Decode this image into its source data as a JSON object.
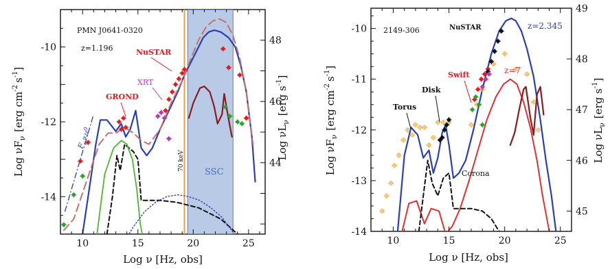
{
  "colors": {
    "model_blue": "#2a3fb0",
    "dashed_brown": "#c47070",
    "nustar_red": "#e41a1c",
    "xrt_magenta": "#b03cb0",
    "grond_red": "#e02020",
    "green_points": "#2ca02c",
    "corona_black": "#111111",
    "disk_green": "#4cb82e",
    "ssc_band": "#9bb4dc",
    "energy_line": "#f0a040",
    "dark_red": "#8b1a1a",
    "z7_red": "#e03030",
    "archival_orange": "#f0b050"
  },
  "chart_data": [
    {
      "type": "line",
      "title": "",
      "source_label": "PMN J0641-0320",
      "redshift_label": "z=1.196",
      "xlabel": "Log ν  [Hz, obs]",
      "ylabel": "Log νF",
      "ylabel_sub": "ν",
      "ylabel_units": "[erg cm",
      "ylabel_tail": "s",
      "ylabel2": "Log νL",
      "ylabel2_sub": "ν",
      "ylabel2_units": "[erg s",
      "xlim": [
        8,
        26.5
      ],
      "ylim": [
        -15,
        -9
      ],
      "y2lim": [
        41.67,
        49.0
      ],
      "xticks": [
        "10",
        "15",
        "20",
        "25"
      ],
      "xtick_values": [
        10,
        15,
        20,
        25
      ],
      "yticks": [
        "-14",
        "-12",
        "-10"
      ],
      "ytick_values": [
        -14,
        -12,
        -10
      ],
      "y2ticks": [
        "44",
        "46",
        "48"
      ],
      "y2tick_values": [
        44,
        46,
        48
      ],
      "annotations": {
        "nustar": "NuSTAR",
        "xrt": "XRT",
        "grond": "GROND",
        "energy_line": "70 keV",
        "ssc": "SSC",
        "slope_F": "F",
        "slope_sub": "ν",
        "slope_prop": "∝ν",
        "slope_exp": "0"
      },
      "ssc_band_x": [
        19.5,
        23.6
      ],
      "energy_line_x": 19.2,
      "series": [
        {
          "role": "total-model",
          "style": "solid-blue",
          "x": [
            10.0,
            11.2,
            11.6,
            12.2,
            13.0,
            13.5,
            13.9,
            14.3,
            14.8,
            15.3,
            15.8,
            16.3,
            17.0,
            17.8,
            18.6,
            19.2,
            19.8,
            20.4,
            20.9,
            21.4,
            21.9,
            22.5,
            23.2,
            23.8,
            24.3,
            24.8,
            25.3,
            25.6
          ],
          "y": [
            -15.0,
            -12.6,
            -11.95,
            -11.95,
            -12.25,
            -12.05,
            -12.4,
            -12.2,
            -11.7,
            -12.7,
            -12.9,
            -12.7,
            -12.2,
            -11.7,
            -11.2,
            -10.75,
            -10.4,
            -10.05,
            -9.75,
            -9.6,
            -9.55,
            -9.6,
            -9.75,
            -10.0,
            -10.5,
            -11.2,
            -12.4,
            -13.6
          ]
        },
        {
          "role": "dashed-model",
          "style": "long-dash-brown",
          "x": [
            8.3,
            9.2,
            10.0,
            10.8,
            11.5,
            12.3,
            13.0,
            13.8,
            14.6,
            15.3,
            16.0,
            17.0,
            18.0,
            19.0,
            19.8,
            20.5,
            21.2,
            21.8,
            22.4,
            23.0,
            23.6,
            24.2,
            24.8,
            25.4
          ],
          "y": [
            -14.9,
            -14.6,
            -13.9,
            -13.2,
            -12.6,
            -12.3,
            -12.3,
            -12.15,
            -12.3,
            -12.5,
            -12.6,
            -12.2,
            -11.5,
            -10.9,
            -10.3,
            -9.8,
            -9.45,
            -9.3,
            -9.25,
            -9.35,
            -9.7,
            -10.3,
            -11.2,
            -12.6
          ]
        },
        {
          "role": "black-dashed",
          "style": "short-dash-black",
          "x": [
            12.2,
            12.7,
            13.1,
            13.4,
            13.8,
            14.2,
            14.6,
            15.0,
            15.3,
            15.7,
            16.2,
            17.0,
            18.5,
            20.5,
            22.5,
            24.0,
            24.8
          ],
          "y": [
            -15.0,
            -14.0,
            -12.9,
            -13.3,
            -12.6,
            -12.7,
            -12.8,
            -13.0,
            -14.1,
            -14.1,
            -14.1,
            -14.1,
            -14.15,
            -14.3,
            -14.6,
            -15.0,
            -15.2
          ]
        },
        {
          "role": "green-disk",
          "style": "solid-green",
          "x": [
            11.3,
            12.0,
            12.8,
            13.5,
            14.0,
            14.5,
            14.9,
            15.2,
            15.5
          ],
          "y": [
            -15.0,
            -13.4,
            -12.7,
            -12.5,
            -12.6,
            -13.0,
            -13.8,
            -14.7,
            -15.2
          ]
        },
        {
          "role": "ssc-dotted",
          "style": "dotted-blue",
          "x": [
            13.8,
            14.6,
            15.6,
            16.6,
            17.6,
            18.6,
            19.6,
            20.6,
            21.6,
            22.6,
            23.6,
            24.2
          ],
          "y": [
            -15.2,
            -14.8,
            -14.4,
            -14.15,
            -14.0,
            -13.95,
            -14.0,
            -14.1,
            -14.3,
            -14.55,
            -14.95,
            -15.3
          ]
        },
        {
          "role": "dark-red-broken",
          "style": "solid-darkred",
          "x": [
            19.6,
            20.0,
            20.6,
            21.0,
            21.5,
            21.9,
            22.2,
            22.6,
            22.8,
            23.0,
            23.3,
            23.5
          ],
          "y": [
            -11.9,
            -11.5,
            -11.1,
            -11.05,
            -11.2,
            -11.6,
            -12.05,
            -11.8,
            -11.25,
            -11.6,
            -12.1,
            -12.4
          ]
        }
      ],
      "points": [
        {
          "set": "radio-green",
          "x": [
            8.3,
            9.2,
            10.0
          ],
          "y": [
            -14.75,
            -13.95,
            -13.45
          ]
        },
        {
          "set": "radio-red",
          "x": [
            9.8,
            10.5
          ],
          "y": [
            -13.05,
            -12.55
          ]
        },
        {
          "set": "grond",
          "x": [
            13.3,
            13.5,
            13.7,
            13.9
          ],
          "y": [
            -12.0,
            -12.2,
            -11.9,
            -12.15
          ]
        },
        {
          "set": "nustar",
          "x": [
            17.5,
            17.8,
            18.1,
            18.4,
            18.7,
            19.0,
            19.2
          ],
          "y": [
            -11.7,
            -11.4,
            -11.2,
            -11.0,
            -10.85,
            -10.7,
            -10.6
          ]
        },
        {
          "set": "xrt",
          "x": [
            16.8,
            17.1,
            17.4,
            17.8
          ],
          "y": [
            -11.85,
            -11.75,
            -11.9,
            -12.45
          ]
        },
        {
          "set": "high-energy-red",
          "x": [
            22.7,
            23.2,
            24.2,
            24.8
          ],
          "y": [
            -10.05,
            -10.55,
            -10.75,
            -11.9
          ]
        },
        {
          "set": "green-high",
          "x": [
            22.9,
            23.3,
            24.0,
            24.4
          ],
          "y": [
            -11.6,
            -11.85,
            -12.0,
            -12.05
          ]
        }
      ]
    },
    {
      "type": "line",
      "title": "",
      "source_label": "2149-306",
      "xlabel": "Log ν  [Hz, obs]",
      "ylabel": "Log νF",
      "ylabel_sub": "ν",
      "ylabel_units": "[erg cm",
      "ylabel_tail": "s",
      "ylabel2": "Log νL",
      "ylabel2_sub": "ν",
      "ylabel2_units": "[erg s",
      "xlim": [
        8,
        26
      ],
      "ylim": [
        -14,
        -9.6
      ],
      "y2lim": [
        44.6,
        49.0
      ],
      "xticks": [
        "10",
        "15",
        "20",
        "25"
      ],
      "xtick_values": [
        10,
        15,
        20,
        25
      ],
      "yticks": [
        "-14",
        "-13",
        "-12",
        "-11",
        "-10"
      ],
      "ytick_values": [
        -14,
        -13,
        -12,
        -11,
        -10
      ],
      "y2ticks": [
        "45",
        "46",
        "47",
        "48",
        "49"
      ],
      "y2tick_values": [
        45,
        46,
        47,
        48,
        49
      ],
      "annotations": {
        "nustar": "NuSTAR",
        "swift": "Swift",
        "disk": "Disk",
        "torus": "Torus",
        "corona": "Corona",
        "z_blue": "z=2.345",
        "z_red": "z=7"
      },
      "series": [
        {
          "role": "blue-model",
          "style": "solid-blue",
          "x": [
            10.4,
            11.0,
            11.6,
            12.2,
            12.7,
            13.2,
            13.6,
            14.0,
            14.4,
            14.7,
            15.0,
            15.4,
            15.9,
            16.5,
            17.2,
            18.0,
            18.8,
            19.5,
            20.1,
            20.6,
            21.0,
            21.5,
            22.0,
            22.6,
            23.2,
            23.7,
            24.2,
            24.6
          ],
          "y": [
            -14.0,
            -12.5,
            -11.95,
            -12.1,
            -12.55,
            -12.4,
            -12.85,
            -12.55,
            -12.05,
            -11.9,
            -12.3,
            -12.95,
            -12.85,
            -12.6,
            -12.0,
            -11.2,
            -10.5,
            -10.05,
            -9.85,
            -9.8,
            -9.85,
            -10.05,
            -10.4,
            -10.95,
            -11.8,
            -12.6,
            -13.3,
            -14.0
          ]
        },
        {
          "role": "red-z7",
          "style": "solid-red",
          "x": [
            10.8,
            11.4,
            12.1,
            12.8,
            13.4,
            14.1,
            14.7,
            15.3,
            16.0,
            16.8,
            17.6,
            18.4,
            19.2,
            19.9,
            20.5,
            21.1,
            21.7,
            22.3,
            22.9,
            23.4,
            24.0
          ],
          "y": [
            -14.0,
            -13.45,
            -13.4,
            -13.85,
            -13.55,
            -13.6,
            -14.05,
            -13.9,
            -13.55,
            -13.0,
            -12.4,
            -11.8,
            -11.35,
            -11.1,
            -11.0,
            -11.1,
            -11.45,
            -11.95,
            -12.6,
            -13.3,
            -14.0
          ]
        },
        {
          "role": "dark-red-broken",
          "style": "solid-darkred",
          "x": [
            20.5,
            20.9,
            21.3,
            21.7,
            21.9,
            22.3,
            22.6,
            22.9,
            23.2,
            23.5
          ],
          "y": [
            -12.3,
            -12.05,
            -11.6,
            -11.2,
            -11.15,
            -11.75,
            -12.1,
            -11.3,
            -11.15,
            -11.7
          ]
        },
        {
          "role": "corona-dashed",
          "style": "short-dash-black",
          "x": [
            12.3,
            12.7,
            13.1,
            13.5,
            14.0,
            14.5,
            15.0,
            15.4,
            16.0,
            17.0,
            18.0,
            18.8,
            19.5,
            20.1
          ],
          "y": [
            -14.0,
            -13.3,
            -12.6,
            -13.05,
            -13.3,
            -12.95,
            -12.85,
            -13.55,
            -13.55,
            -13.55,
            -13.6,
            -13.75,
            -14.0,
            -14.3
          ]
        }
      ],
      "points": [
        {
          "set": "archival-orange",
          "x": [
            9.0,
            9.4,
            9.8,
            10.1,
            10.5,
            10.9,
            11.3,
            11.7,
            12.0,
            12.4,
            12.8,
            13.2,
            13.6,
            14.0,
            14.5,
            15.0,
            17.0,
            17.5,
            18.0,
            19.0,
            20.0,
            21.0,
            22.0,
            22.6,
            23.0
          ],
          "y": [
            -13.6,
            -13.3,
            -13.05,
            -12.7,
            -12.5,
            -12.2,
            -12.0,
            -12.1,
            -11.9,
            -11.95,
            -11.95,
            -12.3,
            -12.15,
            -11.85,
            -11.85,
            -11.85,
            -11.9,
            -11.5,
            -11.2,
            -10.7,
            -10.5,
            -10.8,
            -10.9,
            -11.45,
            -12.0
          ]
        },
        {
          "set": "disk-black",
          "x": [
            14.2,
            14.4,
            14.6,
            14.8,
            15.0
          ],
          "y": [
            -12.2,
            -12.15,
            -12.0,
            -11.9,
            -11.8
          ]
        },
        {
          "set": "swift-red",
          "x": [
            17.3,
            17.6,
            17.9,
            18.2,
            18.5
          ],
          "y": [
            -11.4,
            -11.2,
            -11.0,
            -10.9,
            -10.8
          ]
        },
        {
          "set": "nustar-black",
          "x": [
            18.5,
            18.8,
            19.1,
            19.4,
            19.7
          ],
          "y": [
            -10.85,
            -10.65,
            -10.45,
            -10.25,
            -10.05
          ]
        },
        {
          "set": "green",
          "x": [
            17.1,
            17.4,
            17.7,
            18.0
          ],
          "y": [
            -11.6,
            -11.35,
            -11.5,
            -11.9
          ]
        },
        {
          "set": "magenta",
          "x": [
            18.0,
            18.3,
            18.6
          ],
          "y": [
            -11.15,
            -11.0,
            -10.9
          ]
        }
      ]
    }
  ]
}
